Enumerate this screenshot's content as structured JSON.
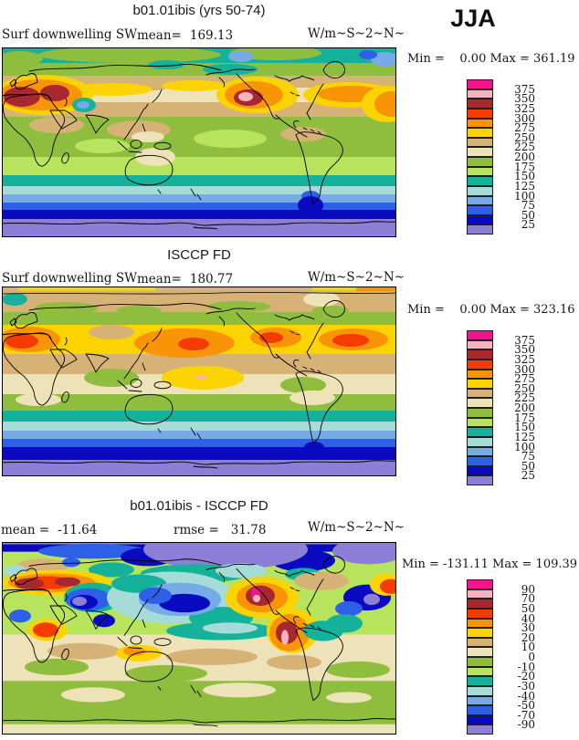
{
  "chart_data": {
    "type": "heatmap",
    "season": "JJA",
    "variable": "Surf downwelling SW",
    "projection": "global latitude-longitude, Pacific-centered",
    "panels": [
      {
        "title": "b01.01ibis (yrs 50-74)",
        "var_label": "Surf downwelling SW",
        "mean_label": "mean=",
        "mean_value": "169.13",
        "units": "W/m~S~2~N~",
        "minmax_line": "Min =    0.00 Max = 361.19",
        "mean": 169.13,
        "min": 0.0,
        "max": 361.19,
        "colorbar_labels": [
          "375",
          "350",
          "325",
          "300",
          "275",
          "250",
          "225",
          "200",
          "175",
          "150",
          "125",
          "100",
          "75",
          "50",
          "25"
        ],
        "colorbar_colors": [
          "#f5128c",
          "#f8b3c0",
          "#a82830",
          "#f63b00",
          "#f99406",
          "#fbd400",
          "#d7b277",
          "#eee3b8",
          "#8fbe3f",
          "#b8e35c",
          "#14b29a",
          "#a5dcd8",
          "#76abe8",
          "#2e5fe8",
          "#0a0ac0",
          "#8d7fd8"
        ]
      },
      {
        "title": "ISCCP FD",
        "var_label": "Surf downwelling SW",
        "mean_label": "mean=",
        "mean_value": "180.77",
        "units": "W/m~S~2~N~",
        "minmax_line": "Min =    0.00 Max = 323.16",
        "mean": 180.77,
        "min": 0.0,
        "max": 323.16,
        "colorbar_labels": [
          "375",
          "350",
          "325",
          "300",
          "275",
          "250",
          "225",
          "200",
          "175",
          "150",
          "125",
          "100",
          "75",
          "50",
          "25"
        ],
        "colorbar_colors": [
          "#f5128c",
          "#f8b3c0",
          "#a82830",
          "#f63b00",
          "#f99406",
          "#fbd400",
          "#d7b277",
          "#eee3b8",
          "#8fbe3f",
          "#b8e35c",
          "#14b29a",
          "#a5dcd8",
          "#76abe8",
          "#2e5fe8",
          "#0a0ac0",
          "#8d7fd8"
        ]
      },
      {
        "title": "b01.01ibis - ISCCP FD",
        "mean_label": "mean =",
        "mean_value": "-11.64",
        "rmse_label": "rmse =",
        "rmse_value": "31.78",
        "units": "W/m~S~2~N~",
        "minmax_line": "Min = -131.11 Max = 109.39",
        "mean": -11.64,
        "rmse": 31.78,
        "min": -131.11,
        "max": 109.39,
        "colorbar_labels": [
          "90",
          "70",
          "50",
          "40",
          "30",
          "20",
          "10",
          "0",
          "-10",
          "-20",
          "-30",
          "-40",
          "-50",
          "-70",
          "-90"
        ],
        "colorbar_colors": [
          "#f5128c",
          "#f8b3c0",
          "#a82830",
          "#f63b00",
          "#f99406",
          "#fbd400",
          "#d7b277",
          "#eee3b8",
          "#8fbe3f",
          "#b8e35c",
          "#14b29a",
          "#a5dcd8",
          "#76abe8",
          "#2e5fe8",
          "#0a0ac0",
          "#8d7fd8"
        ]
      }
    ]
  }
}
